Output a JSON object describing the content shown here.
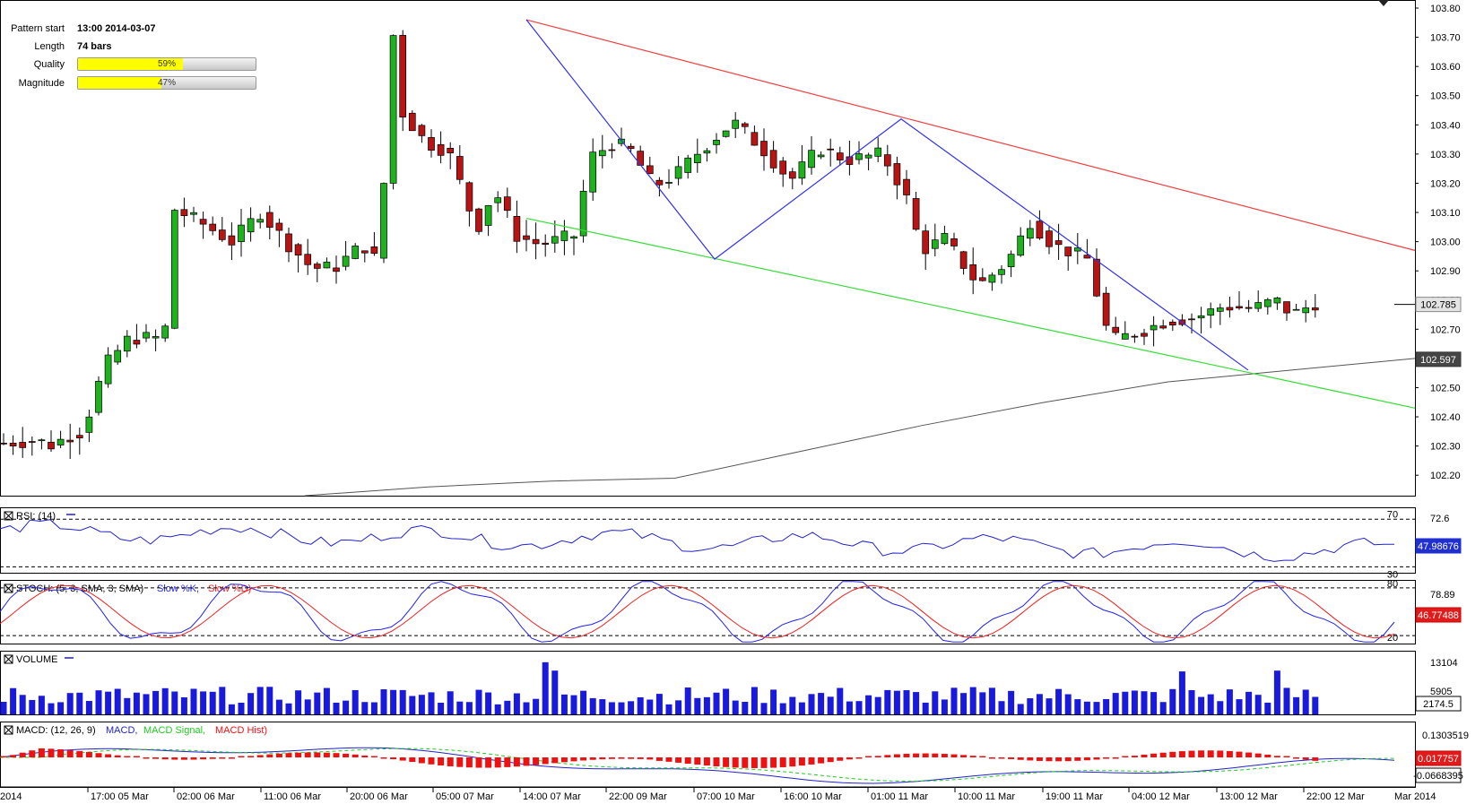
{
  "pattern_info": {
    "start_label": "Pattern start",
    "start_value": "13:00 2014-03-07",
    "length_label": "Length",
    "length_value": "74 bars",
    "quality_label": "Quality",
    "quality_value": "59%",
    "quality_pct": 59,
    "magnitude_label": "Magnitude",
    "magnitude_value": "47%",
    "magnitude_pct": 47
  },
  "colors": {
    "bull": "#1fb21f",
    "bear": "#b81414",
    "resistance": "#f04040",
    "support": "#33dd33",
    "zigzag": "#3333ee",
    "ma": "#555555",
    "rsi": "#2222cc",
    "stoch_k": "#2222ee",
    "stoch_d": "#ee2222",
    "volume": "#1a1adc",
    "macd": "#2222cc",
    "macd_signal": "#22cc22",
    "macd_hist": "#ee1111"
  },
  "chart_data": [
    {
      "type": "candlestick",
      "ylim": [
        102.13,
        103.8
      ],
      "yticks": [
        "103.80",
        "103.70",
        "103.60",
        "103.50",
        "103.40",
        "103.30",
        "103.20",
        "103.10",
        "103.00",
        "102.90",
        "102.80",
        "102.70",
        "102.60",
        "102.50",
        "102.40",
        "102.30",
        "102.20"
      ],
      "xtick_labels": [
        "2014",
        "17:00 05 Mar",
        "02:00 06 Mar",
        "11:00 06 Mar",
        "20:00 06 Mar",
        "05:00 07 Mar",
        "14:00 07 Mar",
        "22:00 09 Mar",
        "07:00 10 Mar",
        "16:00 10 Mar",
        "01:00 11 Mar",
        "10:00 11 Mar",
        "19:00 11 Mar",
        "04:00 12 Mar",
        "13:00 12 Mar",
        "22:00 12 Mar",
        "Mar 2014"
      ],
      "current_price_label": "102.785",
      "ma_price_label": "102.597",
      "ma_values": [
        102.13,
        102.16,
        102.18,
        102.19,
        102.28,
        102.37,
        102.45,
        102.52,
        102.56,
        102.6
      ]
    },
    {
      "type": "line",
      "title": "RSI: (14)",
      "ylim": [
        25,
        80
      ],
      "levels": [
        "70",
        "30"
      ],
      "level_values": [
        70,
        30
      ],
      "scale_label": "72.6",
      "current_label": "47.98676"
    },
    {
      "type": "line",
      "title": "STOCH: (5, 3, SMA, 3, SMA)",
      "legend": [
        "Slow %K",
        "Slow %D"
      ],
      "ylim": [
        10,
        90
      ],
      "levels": [
        "80",
        "20"
      ],
      "level_values": [
        80,
        20
      ],
      "scale_label": "78.89",
      "current_label": "46.77488"
    },
    {
      "type": "bar",
      "title": "VOLUME",
      "ylim": [
        0,
        16000
      ],
      "scale_labels": [
        "13104",
        "5905"
      ],
      "scale_values": [
        13104,
        5905
      ],
      "current_label": "2174.5"
    },
    {
      "type": "line",
      "title": "MACD: (12, 26, 9)",
      "legend": [
        "MACD",
        "MACD Signal",
        "MACD Hist"
      ],
      "scale_labels": [
        "0.1303519",
        "0.017757",
        "-0.0668395"
      ]
    }
  ]
}
